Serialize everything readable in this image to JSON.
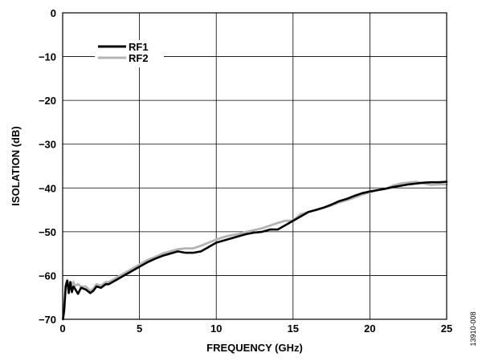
{
  "chart_data": {
    "type": "line",
    "xlabel": "FREQUENCY (GHz)",
    "ylabel": "ISOLATION (dB)",
    "xlim": [
      0,
      25
    ],
    "ylim": [
      -70,
      0
    ],
    "xticks": [
      0,
      5,
      10,
      15,
      20,
      25
    ],
    "yticks": [
      0,
      -10,
      -20,
      -30,
      -40,
      -50,
      -60,
      -70
    ],
    "grid": true,
    "legend": "top-left",
    "figure_id": "13910-008",
    "series": [
      {
        "name": "RF1",
        "color": "#000000",
        "x": [
          0.02,
          0.1,
          0.2,
          0.3,
          0.4,
          0.5,
          0.6,
          0.7,
          0.8,
          1.0,
          1.2,
          1.5,
          1.8,
          2.0,
          2.2,
          2.5,
          2.8,
          3.0,
          3.5,
          4.0,
          4.5,
          5.0,
          5.5,
          6.0,
          6.5,
          7.0,
          7.5,
          8.0,
          8.5,
          9.0,
          9.5,
          10.0,
          10.5,
          11.0,
          11.5,
          12.0,
          12.5,
          13.0,
          13.5,
          14.0,
          14.5,
          15.0,
          15.5,
          16.0,
          16.5,
          17.0,
          17.5,
          18.0,
          18.5,
          19.0,
          19.5,
          20.0,
          20.5,
          21.0,
          21.5,
          22.0,
          22.5,
          23.0,
          23.5,
          24.0,
          24.5,
          25.0
        ],
        "values": [
          -70.0,
          -68.0,
          -62.5,
          -61.2,
          -64.0,
          -61.5,
          -63.8,
          -62.5,
          -63.0,
          -64.2,
          -62.8,
          -63.2,
          -64.0,
          -63.5,
          -62.5,
          -62.8,
          -62.0,
          -62.0,
          -61.0,
          -60.0,
          -59.0,
          -58.0,
          -57.0,
          -56.2,
          -55.5,
          -55.0,
          -54.5,
          -54.8,
          -54.8,
          -54.5,
          -53.5,
          -52.5,
          -52.0,
          -51.5,
          -51.0,
          -50.5,
          -50.2,
          -50.0,
          -49.5,
          -49.5,
          -48.5,
          -47.5,
          -46.5,
          -45.5,
          -45.0,
          -44.5,
          -43.8,
          -43.0,
          -42.5,
          -41.8,
          -41.2,
          -40.8,
          -40.5,
          -40.2,
          -39.8,
          -39.5,
          -39.2,
          -39.0,
          -38.8,
          -38.7,
          -38.7,
          -38.6
        ]
      },
      {
        "name": "RF2",
        "color": "#b3b3b3",
        "x": [
          0.02,
          0.1,
          0.2,
          0.3,
          0.4,
          0.5,
          0.6,
          0.7,
          0.8,
          1.0,
          1.2,
          1.5,
          1.8,
          2.0,
          2.2,
          2.5,
          2.8,
          3.0,
          3.5,
          4.0,
          4.5,
          5.0,
          5.5,
          6.0,
          6.5,
          7.0,
          7.5,
          8.0,
          8.5,
          9.0,
          9.5,
          10.0,
          10.5,
          11.0,
          11.5,
          12.0,
          12.5,
          13.0,
          13.5,
          14.0,
          14.5,
          15.0,
          15.5,
          16.0,
          16.5,
          17.0,
          17.5,
          18.0,
          18.5,
          19.0,
          19.5,
          20.0,
          20.5,
          21.0,
          21.5,
          22.0,
          22.5,
          23.0,
          23.5,
          24.0,
          24.5,
          25.0
        ],
        "values": [
          -70.0,
          -67.0,
          -62.0,
          -61.0,
          -62.5,
          -61.5,
          -62.0,
          -61.5,
          -62.3,
          -62.0,
          -62.5,
          -62.5,
          -63.5,
          -63.0,
          -62.0,
          -62.3,
          -61.5,
          -61.5,
          -60.5,
          -59.5,
          -58.5,
          -57.5,
          -56.5,
          -55.8,
          -55.0,
          -54.5,
          -54.0,
          -53.8,
          -53.8,
          -53.2,
          -52.5,
          -51.8,
          -51.2,
          -50.8,
          -50.5,
          -50.0,
          -49.6,
          -49.2,
          -48.6,
          -48.0,
          -47.5,
          -47.5,
          -46.0,
          -45.5,
          -45.0,
          -44.5,
          -44.0,
          -43.3,
          -42.8,
          -42.2,
          -41.5,
          -41.0,
          -40.5,
          -40.2,
          -39.5,
          -39.0,
          -38.8,
          -38.6,
          -39.0,
          -39.3,
          -39.2,
          -39.2
        ]
      }
    ]
  }
}
